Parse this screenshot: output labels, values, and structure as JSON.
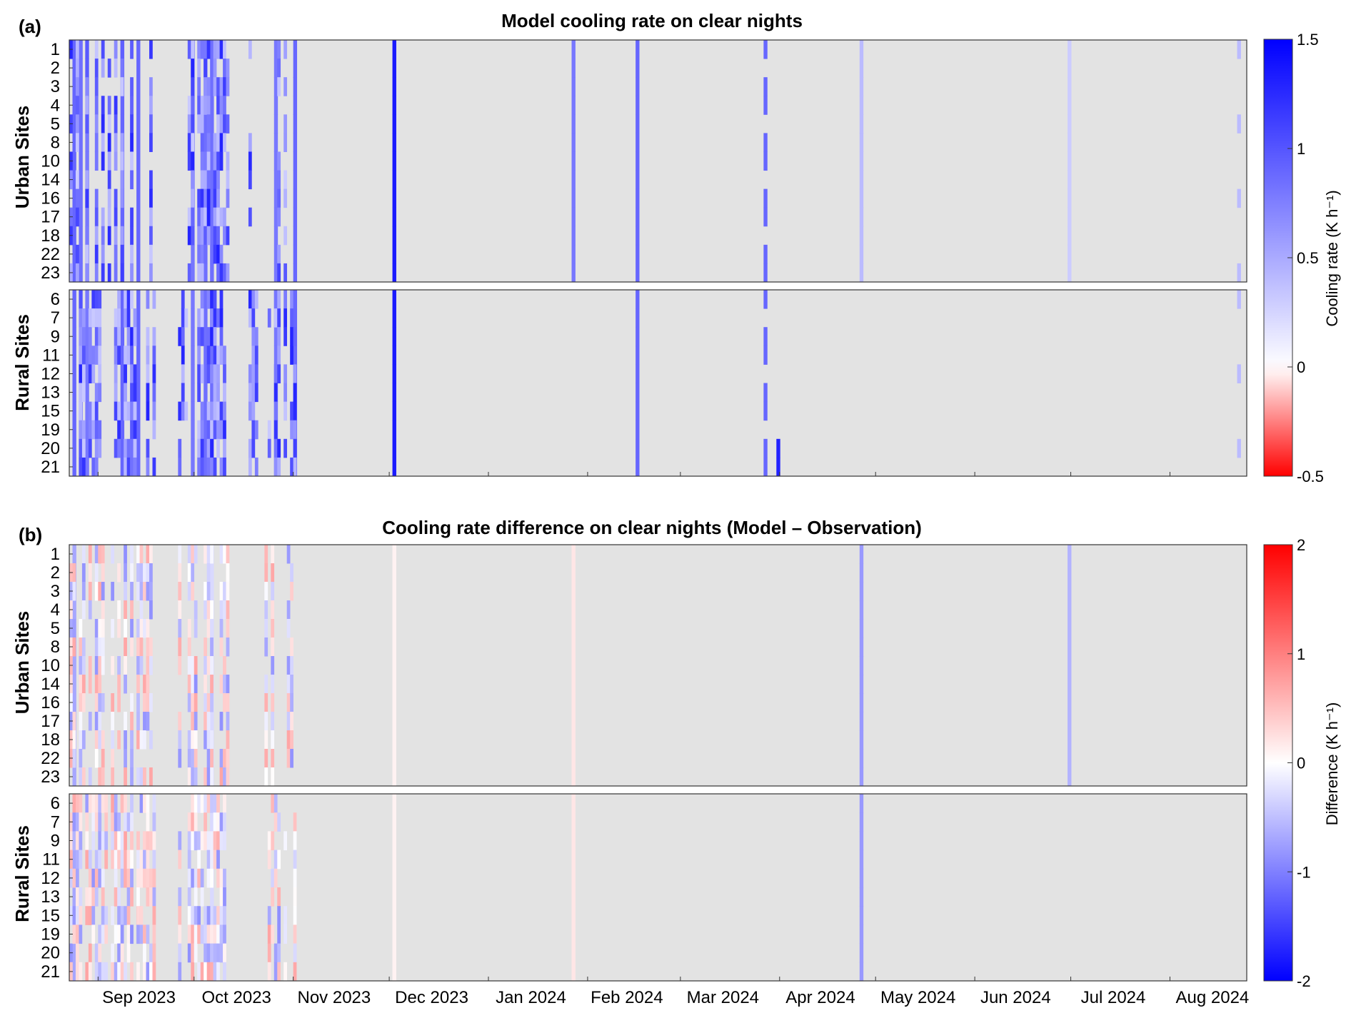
{
  "chart_data": [
    {
      "type": "heatmap",
      "panel_letter": "(a)",
      "title": "Model cooling rate on clear nights",
      "groups": [
        {
          "label": "Urban Sites",
          "rows": [
            "1",
            "2",
            "3",
            "4",
            "5",
            "8",
            "10",
            "14",
            "16",
            "17",
            "18",
            "22",
            "23"
          ]
        },
        {
          "label": "Rural Sites",
          "rows": [
            "6",
            "7",
            "9",
            "11",
            "12",
            "13",
            "15",
            "19",
            "20",
            "21"
          ]
        }
      ],
      "x_start": "2023-08-23",
      "x_end": "2024-08-25",
      "xtick_labels": [
        "Sep 2023",
        "Oct 2023",
        "Nov 2023",
        "Dec 2023",
        "Jan 2024",
        "Feb 2024",
        "Mar 2024",
        "Apr 2024",
        "May 2024",
        "Jun 2024",
        "Jul 2024",
        "Aug 2024"
      ],
      "colorbar": {
        "label": "Cooling rate (K h⁻¹)",
        "min": -0.5,
        "max": 1.5,
        "ticks": [
          "1.5",
          "1",
          "0.5",
          "0",
          "-0.5"
        ],
        "low_color": "#ff0000",
        "mid_color": "#ffffff",
        "high_color": "#0000ff"
      },
      "missing_color": "#e3e3e3",
      "values_approx": [
        {
          "date": "2023-08-24",
          "all_sites": 0.9
        },
        {
          "date": "2023-08-26",
          "all_sites": 0.85
        },
        {
          "date": "2023-08-28",
          "all_sites": 0.8
        },
        {
          "date": "2023-09-08",
          "all_sites": 0.9
        },
        {
          "date": "2023-09-13",
          "all_sites": 0.9
        },
        {
          "date": "2023-09-30",
          "all_sites": 0.8
        },
        {
          "date": "2023-10-04",
          "all_sites": 0.85
        },
        {
          "date": "2023-10-06",
          "all_sites": 0.85
        },
        {
          "date": "2023-10-26",
          "all_sites": 0.8
        },
        {
          "date": "2023-11-01",
          "all_sites": 0.9
        },
        {
          "date": "2023-12-02",
          "all_sites": 1.35
        },
        {
          "date": "2024-01-27",
          "urban_sites": 0.8
        },
        {
          "date": "2024-02-16",
          "all_sites": 0.9
        },
        {
          "date": "2024-03-27",
          "most_sites": 0.9
        },
        {
          "date": "2024-03-31",
          "sites": [
            "20",
            "21"
          ],
          "value": 1.3
        },
        {
          "date": "2024-04-26",
          "urban_sites": 0.4
        },
        {
          "date": "2024-06-30",
          "urban_sites": 0.3
        },
        {
          "date": "2024-08-22",
          "some_sites": 0.4
        }
      ]
    },
    {
      "type": "heatmap",
      "panel_letter": "(b)",
      "title": "Cooling rate difference on clear nights (Model – Observation)",
      "groups": [
        {
          "label": "Urban Sites",
          "rows": [
            "1",
            "2",
            "3",
            "4",
            "5",
            "8",
            "10",
            "14",
            "16",
            "17",
            "18",
            "22",
            "23"
          ]
        },
        {
          "label": "Rural Sites",
          "rows": [
            "6",
            "7",
            "9",
            "11",
            "12",
            "13",
            "15",
            "19",
            "20",
            "21"
          ]
        }
      ],
      "x_start": "2023-08-23",
      "x_end": "2024-08-25",
      "xtick_labels": [
        "Sep 2023",
        "Oct 2023",
        "Nov 2023",
        "Dec 2023",
        "Jan 2024",
        "Feb 2024",
        "Mar 2024",
        "Apr 2024",
        "May 2024",
        "Jun 2024",
        "Jul 2024",
        "Aug 2024"
      ],
      "colorbar": {
        "label": "Difference (K h⁻¹)",
        "min": -2,
        "max": 2,
        "ticks": [
          "2",
          "1",
          "0",
          "-1",
          "-2"
        ],
        "low_color": "#0000ff",
        "mid_color": "#ffffff",
        "high_color": "#ff0000"
      },
      "missing_color": "#e3e3e3",
      "values_approx": [
        {
          "date": "2023-08-24",
          "all_sites": -0.7
        },
        {
          "date": "2023-09-13",
          "site": "15",
          "value": 1.3
        },
        {
          "date": "2023-10-06",
          "all_sites": -0.3
        },
        {
          "date": "2023-12-02",
          "all_sites": 0.1
        },
        {
          "date": "2024-01-27",
          "all_sites": 0.2
        },
        {
          "date": "2024-04-26",
          "all_sites": -0.8
        },
        {
          "date": "2024-06-30",
          "urban_sites": -0.6
        }
      ]
    }
  ]
}
